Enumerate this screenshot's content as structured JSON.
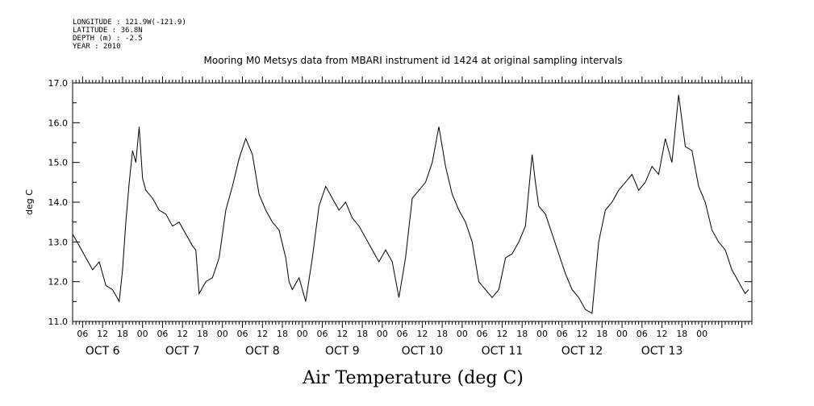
{
  "metadata": {
    "longitude": "LONGITUDE : 121.9W(-121.9)",
    "latitude": "LATITUDE : 36.8N",
    "depth": "DEPTH (m) : -2.5",
    "year": "YEAR : 2010"
  },
  "chart_data": {
    "type": "line",
    "title": "Mooring M0 Metsys data from MBARI instrument id 1424 at original sampling intervals",
    "xlabel": "Air Temperature (deg C)",
    "ylabel": "deg C",
    "ylim": [
      11.0,
      17.0
    ],
    "xlim_hours": [
      0,
      204
    ],
    "grid": false,
    "y_ticks": [
      "11.0",
      "12.0",
      "13.0",
      "14.0",
      "15.0",
      "16.0",
      "17.0"
    ],
    "hour_ticks": [
      "06",
      "12",
      "18",
      "00",
      "06",
      "12",
      "18",
      "00",
      "06",
      "12",
      "18",
      "00",
      "06",
      "12",
      "18",
      "00",
      "06",
      "12",
      "18",
      "00",
      "06",
      "12",
      "18",
      "00",
      "06",
      "12",
      "18",
      "00",
      "06",
      "12",
      "18",
      "00"
    ],
    "date_labels": [
      "OCT  6",
      "OCT  7",
      "OCT  8",
      "OCT  9",
      "OCT 10",
      "OCT 11",
      "OCT 12",
      "OCT 13"
    ],
    "series": [
      {
        "color": "#000000",
        "x": [
          0,
          2,
          4,
          6,
          8,
          10,
          12,
          14,
          15,
          16,
          17,
          18,
          19,
          20,
          21,
          22,
          24,
          26,
          28,
          30,
          32,
          34,
          36,
          37,
          38,
          40,
          42,
          44,
          46,
          48,
          50,
          52,
          54,
          56,
          58,
          60,
          62,
          64,
          65,
          66,
          68,
          70,
          72,
          74,
          76,
          78,
          80,
          82,
          84,
          86,
          88,
          90,
          92,
          94,
          96,
          98,
          100,
          102,
          104,
          106,
          108,
          110,
          112,
          114,
          116,
          118,
          120,
          122,
          124,
          126,
          128,
          130,
          132,
          134,
          136,
          138,
          139,
          140,
          142,
          144,
          146,
          148,
          150,
          152,
          154,
          156,
          158,
          160,
          162,
          164,
          166,
          168,
          170,
          172,
          174,
          176,
          178,
          180,
          182,
          184,
          186,
          188,
          190,
          192,
          194,
          196,
          198,
          200,
          202,
          203
        ],
        "values": [
          13.2,
          12.9,
          12.6,
          12.3,
          12.5,
          11.9,
          11.8,
          11.5,
          12.3,
          13.5,
          14.5,
          15.3,
          15.0,
          15.9,
          14.6,
          14.3,
          14.1,
          13.8,
          13.7,
          13.4,
          13.5,
          13.2,
          12.9,
          12.8,
          11.7,
          12.0,
          12.1,
          12.6,
          13.8,
          14.4,
          15.1,
          15.6,
          15.2,
          14.2,
          13.8,
          13.5,
          13.3,
          12.6,
          12.0,
          11.8,
          12.1,
          11.5,
          12.6,
          13.9,
          14.4,
          14.1,
          13.8,
          14.0,
          13.6,
          13.4,
          13.1,
          12.8,
          12.5,
          12.8,
          12.5,
          11.6,
          12.6,
          14.1,
          14.3,
          14.5,
          15.0,
          15.9,
          14.9,
          14.2,
          13.8,
          13.5,
          13.0,
          12.0,
          11.8,
          11.6,
          11.8,
          12.6,
          12.7,
          13.0,
          13.4,
          15.2,
          14.5,
          13.9,
          13.7,
          13.2,
          12.7,
          12.2,
          11.8,
          11.6,
          11.3,
          11.2,
          13.0,
          13.8,
          14.0,
          14.3,
          14.5,
          14.7,
          14.3,
          14.5,
          14.9,
          14.7,
          15.6,
          15.0,
          16.7,
          15.4,
          15.3,
          14.4,
          14.0,
          13.3,
          13.0,
          12.8,
          12.3,
          12.0,
          11.7,
          11.8
        ]
      }
    ]
  }
}
